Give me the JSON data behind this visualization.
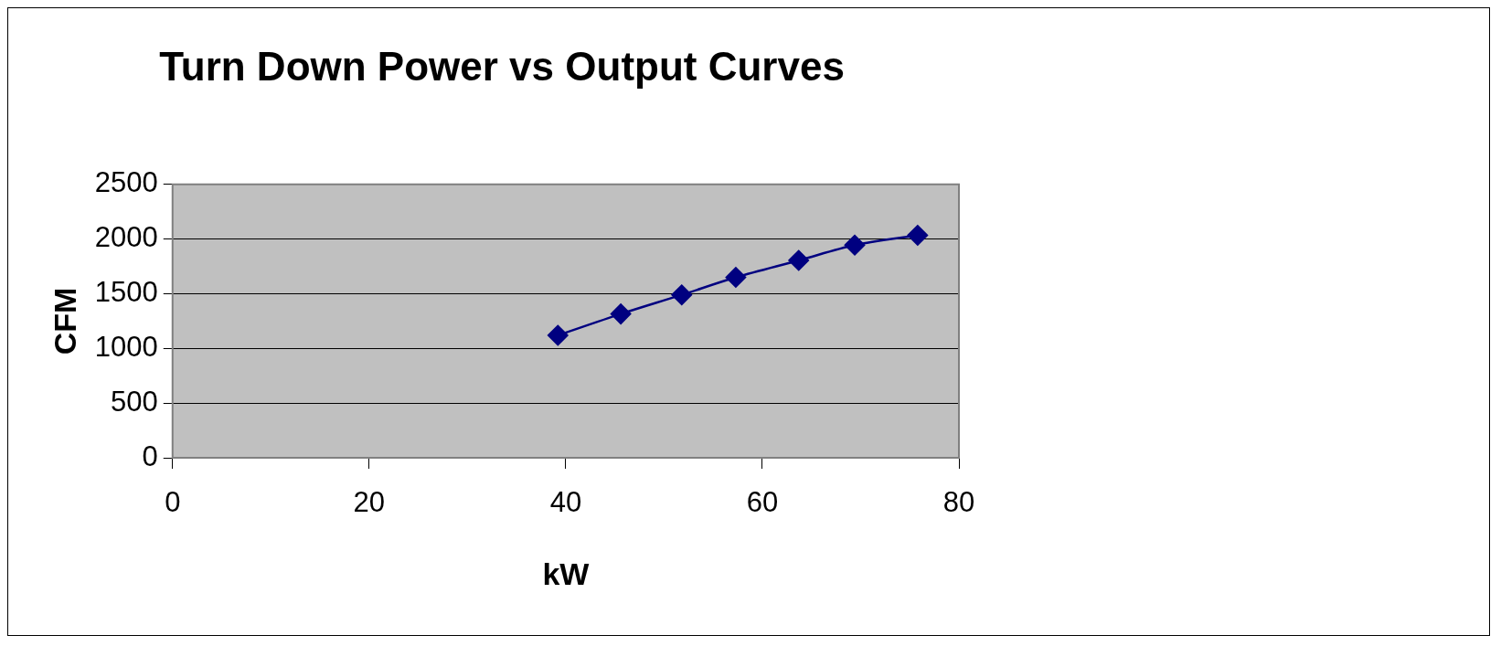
{
  "chart_data": {
    "type": "line",
    "title": "Turn Down Power vs Output Curves",
    "xlabel": "kW",
    "ylabel": "CFM",
    "series": [
      {
        "color": "#000080",
        "x": [
          39.2,
          45.6,
          51.8,
          57.3,
          63.7,
          69.4,
          75.8
        ],
        "values": [
          1120,
          1315,
          1490,
          1650,
          1805,
          1945,
          2035
        ]
      }
    ],
    "xlim": [
      0,
      80
    ],
    "xticks": [
      0,
      20,
      40,
      60,
      80
    ],
    "ylim": [
      0,
      2500
    ],
    "yticks": [
      0,
      500,
      1000,
      1500,
      2000,
      2500
    ],
    "grid": "y",
    "marker": "diamond",
    "line_style": "solid",
    "legend": false
  }
}
